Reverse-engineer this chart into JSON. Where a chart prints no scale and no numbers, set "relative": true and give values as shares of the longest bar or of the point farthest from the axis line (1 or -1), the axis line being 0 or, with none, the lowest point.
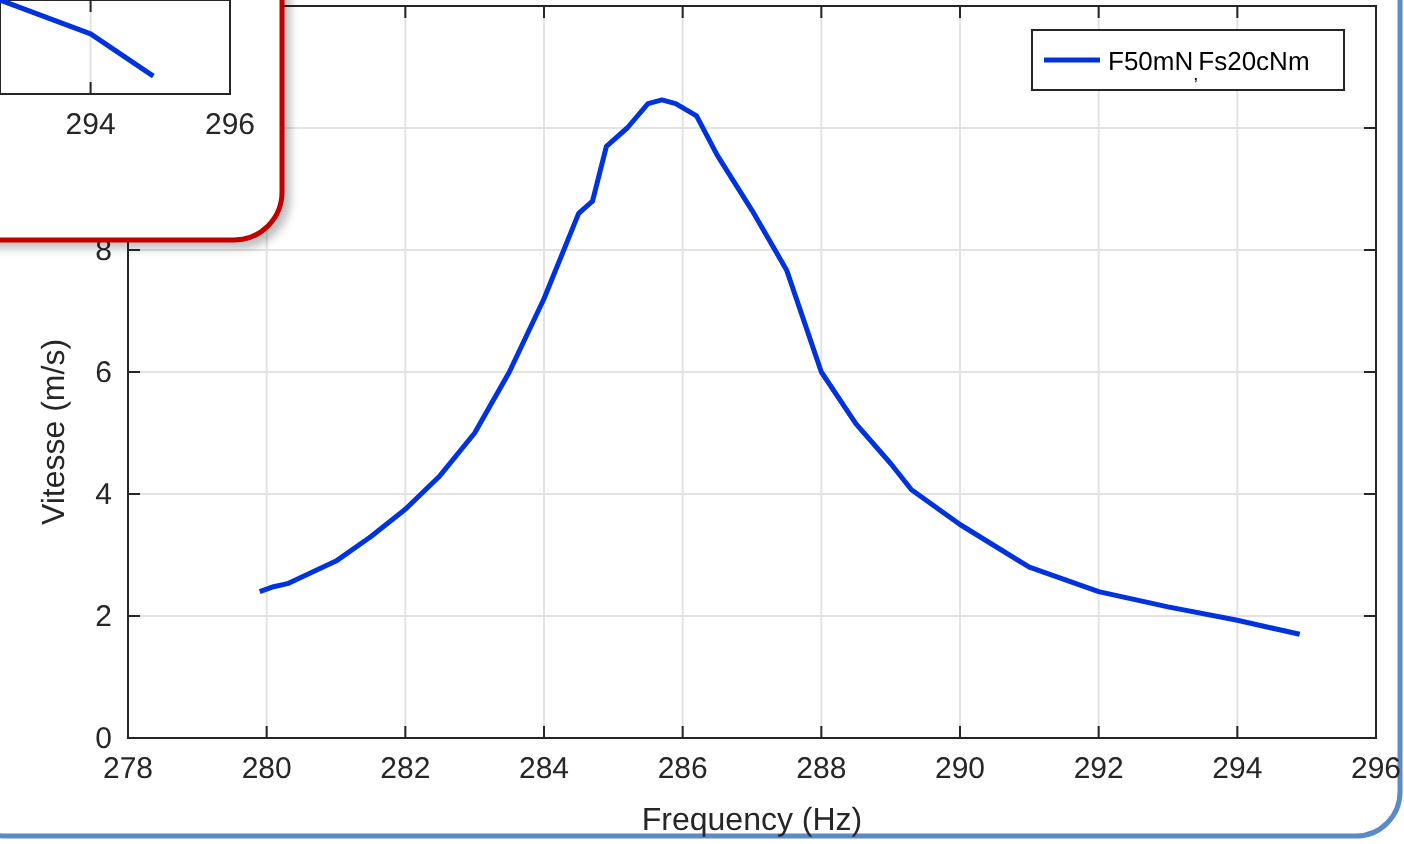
{
  "chart_data": [
    {
      "type": "line",
      "xlabel": "Frequency (Hz)",
      "ylabel": "Vitesse (m/s)",
      "xlim": [
        278,
        296
      ],
      "xticks": [
        278,
        280,
        282,
        284,
        286,
        288,
        290,
        292,
        294,
        296
      ],
      "ylim": [
        0,
        12
      ],
      "yticks": [
        0,
        2,
        4,
        6,
        8,
        {
          "value": 10,
          "label": null
        },
        {
          "value": 12,
          "label": null
        }
      ],
      "grid": true,
      "legend": "top right",
      "line_style": "solid",
      "series": [
        {
          "name": "F50mN$_{,}$Fs20cNm",
          "color": "#0033dd",
          "x": [
            279.9,
            280.1,
            280.3,
            281,
            281.5,
            282,
            282.5,
            283,
            283.5,
            284,
            284.5,
            284.7,
            284.9,
            285.2,
            285.5,
            285.7,
            285.9,
            286.2,
            286.5,
            287,
            287.5,
            288,
            288.5,
            289,
            289.3,
            290,
            291,
            292,
            293,
            294,
            294.9
          ],
          "values": [
            2.4,
            2.48,
            2.53,
            2.9,
            3.3,
            3.75,
            4.3,
            5.0,
            6.0,
            7.2,
            8.6,
            8.8,
            9.7,
            10.0,
            10.4,
            10.46,
            10.4,
            10.2,
            9.55,
            8.65,
            7.67,
            6.0,
            5.15,
            4.5,
            4.07,
            3.5,
            2.8,
            2.4,
            2.15,
            1.93,
            1.7
          ]
        }
      ]
    },
    {
      "type": "line",
      "relative": true,
      "xlim": [
        292.7,
        296
      ],
      "xticks": [
        294,
        296
      ],
      "tick_labels": "x",
      "grid": true,
      "series": [
        {
          "color": "#0033dd",
          "x": [
            292.7,
            294,
            294.9
          ],
          "values": [
            1,
            0.64,
            0.19
          ]
        }
      ]
    }
  ]
}
